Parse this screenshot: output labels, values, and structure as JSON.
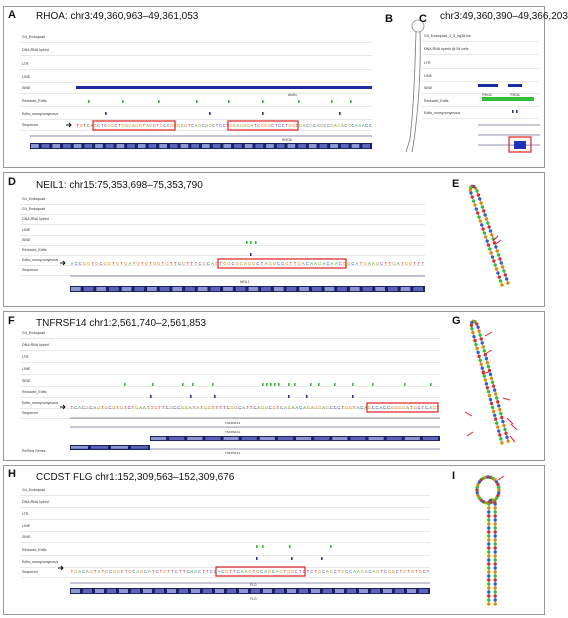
{
  "panels": {
    "A": {
      "letter": "A",
      "title": "RHOA: chr3:49,360,963–49,361,053",
      "gene_label": "RHOA"
    },
    "B": {
      "letter": "B"
    },
    "C": {
      "letter": "C",
      "title": "chr3:49,360,390–49,366,203",
      "header_label": "G4_Endoquad_4_5_hg38.bw",
      "gene_labels": [
        "RHOA",
        "RHOA"
      ]
    },
    "D": {
      "letter": "D",
      "title": "NEIL1: chr15:75,353,698–75,353,790",
      "gene_label": "NEIL1"
    },
    "E": {
      "letter": "E"
    },
    "F": {
      "letter": "F",
      "title": "TNFRSF14 chr1:2,561,740–2,561,853",
      "gene_label": "TNFRSF14",
      "refseq_label": "RefSeq Genes"
    },
    "G": {
      "letter": "G"
    },
    "H": {
      "letter": "H",
      "title": "CCDST FLG chr1:152,309,563–152,309,676",
      "gene_label": "FLG"
    },
    "I": {
      "letter": "I"
    }
  },
  "tracks": {
    "A": [
      "G4_Endoquad",
      "DNA:RNA hybrid",
      "LTR",
      "LINE",
      "SINE",
      "Reduced_Edits",
      "Edits_nonsynonymous",
      "Sequence"
    ],
    "C": [
      "G4_Endoquad_4_5_hg38.bw",
      "DNA:RNA hybrid @ 54 cells",
      "LTR",
      "LINE",
      "SINE",
      "Reduced_Edits",
      "Edits_nonsynonymous"
    ],
    "D": [
      "G4_Endoquad",
      "G4_Endoquad",
      "DNA:RNA hybrid",
      "LINE",
      "SINE",
      "Reduced_Edits",
      "Edits_nonsynonymous",
      "Sequence"
    ],
    "F": [
      "G4_Endoquad",
      "DNA:RNA hybrid",
      "LTR",
      "LINE",
      "SINE",
      "Reduced_Edits",
      "Edits_nonsynonymous",
      "Sequence"
    ],
    "H": [
      "G4_Endoquad",
      "DNA:RNA hybrid",
      "LTR",
      "LINE",
      "SINE",
      "Reduced_Edits",
      "Edits_nonsynonymous",
      "Sequence"
    ]
  },
  "sequences": {
    "A": "TGTCAGCTCGGCTGAGAGGTAGCTGCCGGGAGTCAGCAGCTCCTGGAGAGATCGGGCTCCTGGCGACGCAGCCGAGACGCAAACC",
    "D": "ACCGGTGCGGTGTGATGTGTGGTGTTCGTTTCGCAGTGGCGGAGGCTAGGCCGTTGACAAGACAACGGCATGAAGCTTGATGGTTT",
    "F": "TCACGCAGTGCGTGTCTGAATTGTTCGCCGGATATGGTTTTCGGCATTCAGGCGTCAGAACAGAGGAGCCCTGGTACAGCCACCGGGGATGCTCAGT",
    "H": "TGACAGTATGCGGCTGCAGCATCTGTTCTTCAACTTCCACGTTCAAGTGCAGCAGTGGCTCTCTGCAGCTGCCAAGACAGTCGGCTGTGTGCT"
  },
  "colors": {
    "A": "#1aa01a",
    "C": "#1f4fd1",
    "G": "#e08a00",
    "T": "#e02020",
    "sine": "#1c2a9c",
    "edit_green": "#2fbf3a",
    "edit_blue": "#2332b8",
    "highlight": "#e02020",
    "gene_dark": "#1b2266",
    "gene_mid": "#5a64b8"
  }
}
